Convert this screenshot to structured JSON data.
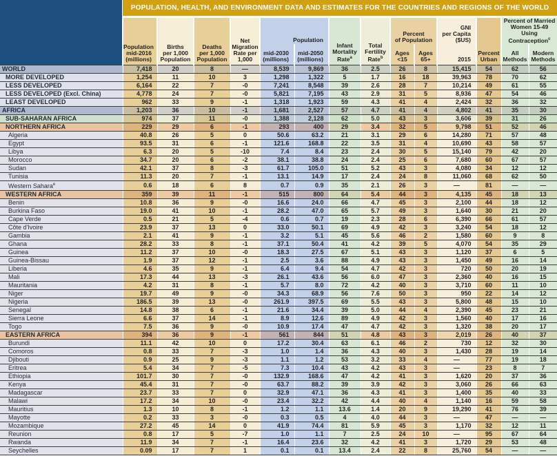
{
  "banner": {
    "title": "POPULATION, HEALTH, AND ENVIRONMENT DATA AND ESTIMATES FOR THE COUNTRIES AND REGIONS OF THE WORLD"
  },
  "colors": {
    "banner_gold": "#d2a111",
    "corner_navy": "#1d4e7c",
    "pop_tan": "#e8cf97",
    "cream": "#f6edd6",
    "projection_blue": "#c3d0e9",
    "health_green": "#d9e8d5",
    "ages_gold": "#e9d1a1",
    "urban_gold": "#e5c88f",
    "region_peach": "#eac3a0",
    "aggregate_grey": "#aeb9cf"
  },
  "header": {
    "pop2016": "Population\nmid-2016\n(millions)",
    "births": "Births\nper 1,000\nPopulation",
    "deaths": "Deaths\nper 1,000\nPopulation",
    "netmig": "Net\nMigration\nRate per\n1,000",
    "pop_group": "Population",
    "pop2030": "mid-2030\n(millions)",
    "pop2050": "mid-2050\n(millions)",
    "imr": {
      "text": "Infant\nMortality\nRate",
      "sup": "a"
    },
    "tfr": {
      "text": "Total\nFertility\nRate",
      "sup": "b"
    },
    "pctpop_group": "Percent\nof Population",
    "ages15": "Ages\n<15",
    "ages65": "Ages\n65+",
    "gni_group": "GNI\nper Capita\n($US)",
    "gni_year": "2015",
    "urban": "Percent\nUrban",
    "contraception_group": {
      "text": "Percent of Married\nWomen 15-49 Using\nContraception",
      "sup": "c"
    },
    "all_methods": "All\nMethods",
    "modern_methods": "Modern\nMethods"
  },
  "table": {
    "columns": [
      "pop-mid2016",
      "births",
      "deaths",
      "net-migration",
      "pop-mid2030",
      "pop-mid2050",
      "infant-mortality",
      "total-fertility",
      "ages-under15",
      "ages-65plus",
      "gni-2015",
      "percent-urban",
      "all-methods",
      "modern-methods"
    ],
    "rows": [
      {
        "label": "WORLD",
        "style": "world",
        "v": [
          "7,418",
          "20",
          "8",
          "—",
          "8,539",
          "9,869",
          "36",
          "2.5",
          "26",
          "8",
          "15,415",
          "54",
          "62",
          "56"
        ]
      },
      {
        "label": "MORE DEVELOPED",
        "style": "dev",
        "v": [
          "1,254",
          "11",
          "10",
          "3",
          "1,298",
          "1,322",
          "5",
          "1.7",
          "16",
          "18",
          "39,963",
          "78",
          "70",
          "62"
        ]
      },
      {
        "label": "LESS DEVELOPED",
        "style": "dev",
        "v": [
          "6,164",
          "22",
          "7",
          "-0",
          "7,241",
          "8,548",
          "39",
          "2.6",
          "28",
          "7",
          "10,214",
          "49",
          "61",
          "55"
        ]
      },
      {
        "label": "LESS DEVELOPED (Excl. China)",
        "style": "dev",
        "v": [
          "4,778",
          "24",
          "7",
          "-0",
          "5,821",
          "7,195",
          "43",
          "2.9",
          "31",
          "5",
          "8,936",
          "47",
          "54",
          "46"
        ]
      },
      {
        "label": "LEAST DEVELOPED",
        "style": "dev",
        "v": [
          "962",
          "33",
          "9",
          "-1",
          "1,318",
          "1,923",
          "59",
          "4.3",
          "41",
          "4",
          "2,424",
          "32",
          "36",
          "32"
        ]
      },
      {
        "label": "AFRICA",
        "style": "world",
        "v": [
          "1,203",
          "36",
          "10",
          "-1",
          "1,681",
          "2,527",
          "57",
          "4.7",
          "41",
          "4",
          "4,802",
          "41",
          "35",
          "30"
        ]
      },
      {
        "label": "SUB-SAHARAN AFRICA",
        "style": "ssa",
        "v": [
          "974",
          "37",
          "11",
          "-0",
          "1,388",
          "2,128",
          "62",
          "5.0",
          "43",
          "3",
          "3,606",
          "39",
          "31",
          "26"
        ]
      },
      {
        "label": "NORTHERN AFRICA",
        "style": "region",
        "v": [
          "229",
          "29",
          "6",
          "-1",
          "293",
          "400",
          "29",
          "3.4",
          "32",
          "5",
          "9,798",
          "51",
          "52",
          "46"
        ]
      },
      {
        "label": "Algeria",
        "style": "country",
        "v": [
          "40.8",
          "26",
          "5",
          "0",
          "50.6",
          "63.2",
          "21",
          "3.1",
          "29",
          "6",
          "14,280",
          "71",
          "57",
          "48"
        ]
      },
      {
        "label": "Egypt",
        "style": "country",
        "v": [
          "93.5",
          "31",
          "6",
          "-1",
          "121.6",
          "168.8",
          "22",
          "3.5",
          "31",
          "4",
          "10,690",
          "43",
          "58",
          "57"
        ]
      },
      {
        "label": "Libya",
        "style": "country",
        "v": [
          "6.3",
          "20",
          "5",
          "-10",
          "7.4",
          "8.4",
          "23",
          "2.4",
          "30",
          "5",
          "15,140",
          "79",
          "42",
          "20"
        ]
      },
      {
        "label": "Morocco",
        "style": "country",
        "v": [
          "34.7",
          "20",
          "6",
          "-2",
          "38.1",
          "38.8",
          "24",
          "2.4",
          "25",
          "6",
          "7,680",
          "60",
          "67",
          "57"
        ]
      },
      {
        "label": "Sudan",
        "style": "country",
        "v": [
          "42.1",
          "37",
          "8",
          "-3",
          "61.7",
          "105.0",
          "51",
          "5.2",
          "43",
          "3",
          "4,080",
          "34",
          "12",
          "12"
        ]
      },
      {
        "label": "Tunisia",
        "style": "country",
        "v": [
          "11.3",
          "20",
          "7",
          "-1",
          "13.1",
          "14.9",
          "17",
          "2.4",
          "24",
          "8",
          "11,060",
          "68",
          "62",
          "50"
        ]
      },
      {
        "label": "Western Sahara^e",
        "style": "country",
        "v": [
          "0.6",
          "18",
          "6",
          "8",
          "0.7",
          "0.9",
          "35",
          "2.1",
          "26",
          "3",
          "—",
          "81",
          "—",
          "—"
        ]
      },
      {
        "label": "WESTERN AFRICA",
        "style": "region",
        "v": [
          "359",
          "39",
          "11",
          "-1",
          "515",
          "800",
          "64",
          "5.4",
          "44",
          "3",
          "4,135",
          "45",
          "18",
          "13"
        ]
      },
      {
        "label": "Benin",
        "style": "country",
        "v": [
          "10.8",
          "36",
          "9",
          "-0",
          "16.6",
          "24.0",
          "66",
          "4.7",
          "45",
          "3",
          "2,100",
          "44",
          "18",
          "12"
        ]
      },
      {
        "label": "Burkina Faso",
        "style": "country",
        "v": [
          "19.0",
          "41",
          "10",
          "-1",
          "28.2",
          "47.0",
          "65",
          "5.7",
          "49",
          "3",
          "1,640",
          "30",
          "21",
          "20"
        ]
      },
      {
        "label": "Cape Verde",
        "style": "country",
        "v": [
          "0.5",
          "21",
          "5",
          "-4",
          "0.6",
          "0.7",
          "19",
          "2.3",
          "28",
          "6",
          "6,390",
          "66",
          "61",
          "57"
        ]
      },
      {
        "label": "Côte d'Ivoire",
        "style": "country",
        "v": [
          "23.9",
          "37",
          "13",
          "0",
          "33.0",
          "50.1",
          "69",
          "4.9",
          "42",
          "3",
          "3,240",
          "54",
          "18",
          "12"
        ]
      },
      {
        "label": "Gambia",
        "style": "country",
        "v": [
          "2.1",
          "41",
          "9",
          "-1",
          "3.2",
          "5.1",
          "45",
          "5.6",
          "46",
          "2",
          "1,580",
          "60",
          "9",
          "8"
        ]
      },
      {
        "label": "Ghana",
        "style": "country",
        "v": [
          "28.2",
          "33",
          "8",
          "-1",
          "37.1",
          "50.4",
          "41",
          "4.2",
          "39",
          "5",
          "4,070",
          "54",
          "35",
          "29"
        ]
      },
      {
        "label": "Guinea",
        "style": "country",
        "v": [
          "11.2",
          "37",
          "10",
          "-0",
          "18.3",
          "27.5",
          "67",
          "5.1",
          "43",
          "3",
          "1,120",
          "37",
          "6",
          "5"
        ]
      },
      {
        "label": "Guinea-Bissau",
        "style": "country",
        "v": [
          "1.9",
          "37",
          "12",
          "-1",
          "2.5",
          "3.6",
          "88",
          "4.9",
          "43",
          "3",
          "1,450",
          "49",
          "16",
          "14"
        ]
      },
      {
        "label": "Liberia",
        "style": "country",
        "v": [
          "4.6",
          "35",
          "9",
          "-1",
          "6.4",
          "9.4",
          "54",
          "4.7",
          "42",
          "3",
          "720",
          "50",
          "20",
          "19"
        ]
      },
      {
        "label": "Mali",
        "style": "country",
        "v": [
          "17.3",
          "44",
          "13",
          "-3",
          "26.1",
          "43.6",
          "56",
          "6.0",
          "47",
          "3",
          "2,360",
          "40",
          "16",
          "15"
        ]
      },
      {
        "label": "Mauritania",
        "style": "country",
        "v": [
          "4.2",
          "31",
          "8",
          "-1",
          "5.7",
          "8.0",
          "72",
          "4.2",
          "40",
          "3",
          "3,710",
          "60",
          "11",
          "10"
        ]
      },
      {
        "label": "Niger",
        "style": "country",
        "v": [
          "19.7",
          "49",
          "9",
          "-0",
          "34.3",
          "68.9",
          "56",
          "7.6",
          "50",
          "3",
          "950",
          "22",
          "14",
          "12"
        ]
      },
      {
        "label": "Nigeria",
        "style": "country",
        "v": [
          "186.5",
          "39",
          "13",
          "-0",
          "261.9",
          "397.5",
          "69",
          "5.5",
          "43",
          "3",
          "5,800",
          "48",
          "15",
          "10"
        ]
      },
      {
        "label": "Senegal",
        "style": "country",
        "v": [
          "14.8",
          "38",
          "6",
          "-1",
          "21.6",
          "34.4",
          "39",
          "5.0",
          "44",
          "4",
          "2,390",
          "45",
          "23",
          "21"
        ]
      },
      {
        "label": "Sierra Leone",
        "style": "country",
        "v": [
          "6.6",
          "37",
          "14",
          "-1",
          "8.9",
          "12.6",
          "89",
          "4.9",
          "42",
          "3",
          "1,560",
          "40",
          "17",
          "16"
        ]
      },
      {
        "label": "Togo",
        "style": "country",
        "v": [
          "7.5",
          "36",
          "9",
          "-0",
          "10.9",
          "17.4",
          "47",
          "4.7",
          "42",
          "3",
          "1,320",
          "38",
          "20",
          "17"
        ]
      },
      {
        "label": "EASTERN AFRICA",
        "style": "region",
        "v": [
          "394",
          "36",
          "9",
          "-1",
          "561",
          "844",
          "51",
          "4.8",
          "43",
          "3",
          "2,019",
          "26",
          "40",
          "37"
        ]
      },
      {
        "label": "Burundi",
        "style": "country",
        "v": [
          "11.1",
          "42",
          "10",
          "0",
          "17.2",
          "30.4",
          "63",
          "6.1",
          "46",
          "2",
          "730",
          "12",
          "32",
          "30"
        ]
      },
      {
        "label": "Comoros",
        "style": "country",
        "v": [
          "0.8",
          "33",
          "7",
          "-3",
          "1.0",
          "1.4",
          "36",
          "4.3",
          "40",
          "3",
          "1,430",
          "28",
          "19",
          "14"
        ]
      },
      {
        "label": "Djibouti",
        "style": "country",
        "v": [
          "0.9",
          "25",
          "9",
          "-3",
          "1.1",
          "1.2",
          "53",
          "3.2",
          "33",
          "4",
          "—",
          "77",
          "19",
          "18"
        ]
      },
      {
        "label": "Eritrea",
        "style": "country",
        "v": [
          "5.4",
          "34",
          "7",
          "-5",
          "7.3",
          "10.4",
          "43",
          "4.2",
          "43",
          "3",
          "—",
          "23",
          "8",
          "7"
        ]
      },
      {
        "label": "Ethiopia",
        "style": "country",
        "v": [
          "101.7",
          "30",
          "7",
          "-0",
          "132.9",
          "168.6",
          "47",
          "4.2",
          "41",
          "3",
          "1,620",
          "20",
          "37",
          "36"
        ]
      },
      {
        "label": "Kenya",
        "style": "country",
        "v": [
          "45.4",
          "31",
          "7",
          "-0",
          "63.7",
          "88.2",
          "39",
          "3.9",
          "42",
          "3",
          "3,060",
          "26",
          "66",
          "63"
        ]
      },
      {
        "label": "Madagascar",
        "style": "country",
        "v": [
          "23.7",
          "33",
          "7",
          "0",
          "32.9",
          "47.1",
          "36",
          "4.3",
          "41",
          "3",
          "1,400",
          "35",
          "40",
          "33"
        ]
      },
      {
        "label": "Malawi",
        "style": "country",
        "v": [
          "17.2",
          "34",
          "10",
          "-0",
          "23.4",
          "32.2",
          "42",
          "4.4",
          "40",
          "4",
          "1,140",
          "16",
          "59",
          "58"
        ]
      },
      {
        "label": "Mauritius",
        "style": "country",
        "v": [
          "1.3",
          "10",
          "8",
          "-1",
          "1.2",
          "1.1",
          "13.6",
          "1.4",
          "20",
          "9",
          "19,290",
          "41",
          "76",
          "39"
        ]
      },
      {
        "label": "Mayotte",
        "style": "country",
        "v": [
          "0.2",
          "33",
          "3",
          "-0",
          "0.3",
          "0.5",
          "4",
          "4.0",
          "44",
          "3",
          "—",
          "47",
          "—",
          "—"
        ]
      },
      {
        "label": "Mozambique",
        "style": "country",
        "v": [
          "27.2",
          "45",
          "14",
          "0",
          "41.9",
          "74.4",
          "81",
          "5.9",
          "45",
          "3",
          "1,170",
          "32",
          "12",
          "11"
        ]
      },
      {
        "label": "Reunion",
        "style": "country",
        "v": [
          "0.8",
          "17",
          "5",
          "-7",
          "1.0",
          "1.1",
          "7",
          "2.5",
          "24",
          "10",
          "—",
          "95",
          "67",
          "64"
        ]
      },
      {
        "label": "Rwanda",
        "style": "country",
        "v": [
          "11.9",
          "34",
          "7",
          "-1",
          "16.4",
          "23.6",
          "32",
          "4.2",
          "41",
          "3",
          "1,720",
          "29",
          "53",
          "48"
        ]
      },
      {
        "label": "Seychelles",
        "style": "country",
        "v": [
          "0.09",
          "17",
          "7",
          "1",
          "0.1",
          "0.1",
          "13.4",
          "2.4",
          "22",
          "8",
          "25,760",
          "54",
          "—",
          "—"
        ]
      }
    ]
  }
}
